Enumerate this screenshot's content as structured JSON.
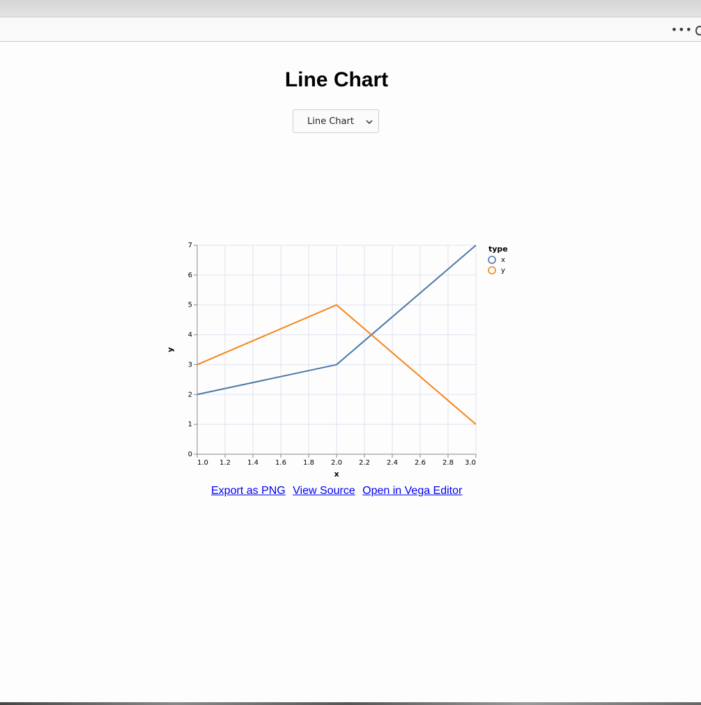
{
  "page": {
    "title": "Line Chart"
  },
  "selector": {
    "value": "Line Chart"
  },
  "links": {
    "export_png": "Export as PNG",
    "view_source": "View Source",
    "open_editor": "Open in Vega Editor"
  },
  "chart_data": {
    "type": "line",
    "xlabel": "x",
    "ylabel": "y",
    "xlim": [
      1.0,
      3.0
    ],
    "ylim": [
      0,
      7
    ],
    "x_ticks": [
      "1.0",
      "1.2",
      "1.4",
      "1.6",
      "1.8",
      "2.0",
      "2.2",
      "2.4",
      "2.6",
      "2.8",
      "3.0"
    ],
    "y_ticks": [
      "0",
      "1",
      "2",
      "3",
      "4",
      "5",
      "6",
      "7"
    ],
    "grid": true,
    "legend": {
      "title": "type",
      "position": "top-right"
    },
    "series": [
      {
        "name": "x",
        "color": "#4c78a8",
        "x": [
          1,
          2,
          3
        ],
        "values": [
          2,
          3,
          7
        ]
      },
      {
        "name": "y",
        "color": "#f58518",
        "x": [
          1,
          2,
          3
        ],
        "values": [
          3,
          5,
          1
        ]
      }
    ]
  }
}
